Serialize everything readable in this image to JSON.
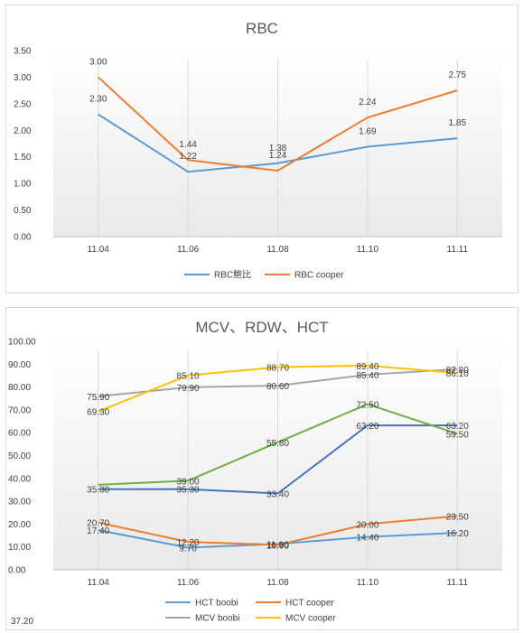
{
  "footer_text": "37.20",
  "chart_data": [
    {
      "type": "line",
      "title": "RBC",
      "categories": [
        "11.04",
        "11.06",
        "11.08",
        "11.10",
        "11.11"
      ],
      "y_ticks": [
        "0.00",
        "0.50",
        "1.00",
        "1.50",
        "2.00",
        "2.50",
        "3.00",
        "3.50"
      ],
      "ylim": [
        0,
        3.5
      ],
      "grid": false,
      "legend_position": "bottom",
      "series": [
        {
          "name": "RBC鲍比",
          "color": "#5b9bd5",
          "values": [
            2.3,
            1.22,
            1.38,
            1.69,
            1.85
          ],
          "labels": [
            "2.30",
            "1.22",
            "1.38",
            "1.69",
            "1.85"
          ]
        },
        {
          "name": "RBC cooper",
          "color": "#ed7d31",
          "values": [
            3.0,
            1.44,
            1.24,
            2.24,
            2.75
          ],
          "labels": [
            "3.00",
            "1.44",
            "1.24",
            "2.24",
            "2.75"
          ]
        }
      ]
    },
    {
      "type": "line",
      "title": "MCV、RDW、HCT",
      "categories": [
        "11.04",
        "11.06",
        "11.08",
        "11.10",
        "11.11"
      ],
      "y_ticks": [
        "0.00",
        "10.00",
        "20.00",
        "30.00",
        "40.00",
        "50.00",
        "60.00",
        "70.00",
        "80.00",
        "90.00",
        "100.00"
      ],
      "ylim": [
        0,
        100
      ],
      "grid": false,
      "legend_position": "bottom",
      "series": [
        {
          "name": "HCT boobi",
          "color": "#5b9bd5",
          "values": [
            17.4,
            9.7,
            11.3,
            14.4,
            16.2
          ],
          "labels": [
            "17.40",
            "9.70",
            "11.30",
            "14.40",
            "16.20"
          ],
          "in_legend": true
        },
        {
          "name": "HCT cooper",
          "color": "#ed7d31",
          "values": [
            20.7,
            12.2,
            10.9,
            20.0,
            23.5
          ],
          "labels": [
            "20.70",
            "12.20",
            "10.90",
            "20.00",
            "23.50"
          ],
          "in_legend": true
        },
        {
          "name": "MCV boobi",
          "color": "#a5a5a5",
          "values": [
            75.9,
            79.9,
            80.6,
            85.4,
            87.8
          ],
          "labels": [
            "75.90",
            "79.90",
            "80.60",
            "85.40",
            "87.80"
          ],
          "in_legend": true
        },
        {
          "name": "MCV cooper",
          "color": "#ffc000",
          "values": [
            69.3,
            85.1,
            88.7,
            89.4,
            86.1
          ],
          "labels": [
            "69.30",
            "85.10",
            "88.70",
            "89.40",
            "86.10"
          ],
          "in_legend": true
        },
        {
          "name": "",
          "color": "#4472c4",
          "values": [
            35.3,
            35.3,
            33.4,
            63.2,
            63.2
          ],
          "labels": [
            "35.30",
            "35.30",
            "33.40",
            "63.20",
            "63.20"
          ],
          "in_legend": false
        },
        {
          "name": "",
          "color": "#70ad47",
          "values": [
            37.2,
            39.0,
            55.8,
            72.5,
            59.5
          ],
          "labels": [
            "",
            "39.00",
            "55.80",
            "72.50",
            "59.50"
          ],
          "in_legend": false
        }
      ]
    }
  ]
}
